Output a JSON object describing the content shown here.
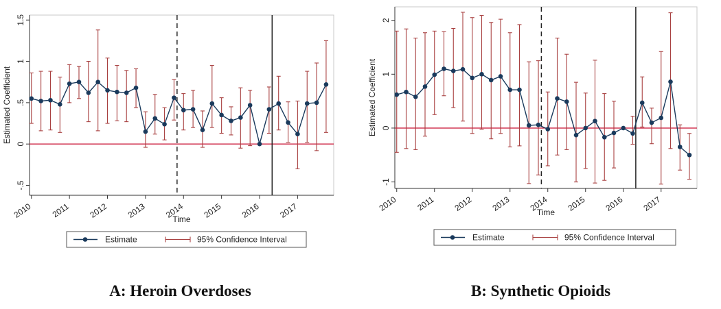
{
  "panels": [
    {
      "caption": "A: Heroin Overdoses",
      "chart_data": {
        "type": "line",
        "title": "A: Heroin Overdoses",
        "xlabel": "Time",
        "ylabel": "Estimated Coefficient",
        "x_tick_labels": [
          "2010",
          "2011",
          "2012",
          "2013",
          "2014",
          "2015",
          "2016",
          "2017"
        ],
        "y_ticks": [
          -0.5,
          0,
          0.5,
          1,
          1.5
        ],
        "y_tick_labels": [
          "-.5",
          "0",
          ".5",
          "1",
          "1.5"
        ],
        "ylim": [
          -0.62,
          1.56
        ],
        "xlim": [
          2009.95,
          2017.95
        ],
        "reference_line_y": 0,
        "vertical_lines": [
          {
            "x": 2013.83,
            "style": "dashed"
          },
          {
            "x": 2016.33,
            "style": "solid"
          }
        ],
        "series": [
          {
            "name": "Estimate",
            "x": [
              2010.0,
              2010.25,
              2010.5,
              2010.75,
              2011.0,
              2011.25,
              2011.5,
              2011.75,
              2012.0,
              2012.25,
              2012.5,
              2012.75,
              2013.0,
              2013.25,
              2013.5,
              2013.75,
              2014.0,
              2014.25,
              2014.5,
              2014.75,
              2015.0,
              2015.25,
              2015.5,
              2015.75,
              2016.0,
              2016.25,
              2016.5,
              2016.75,
              2017.0,
              2017.25,
              2017.5,
              2017.75
            ],
            "values": [
              0.55,
              0.52,
              0.53,
              0.48,
              0.73,
              0.75,
              0.62,
              0.75,
              0.65,
              0.63,
              0.62,
              0.68,
              0.15,
              0.31,
              0.24,
              0.56,
              0.41,
              0.42,
              0.17,
              0.49,
              0.35,
              0.28,
              0.32,
              0.47,
              0.0,
              0.42,
              0.49,
              0.26,
              0.12,
              0.49,
              0.5,
              0.72
            ]
          },
          {
            "name": "95% Confidence Interval",
            "lower": [
              0.25,
              0.16,
              0.17,
              0.14,
              0.5,
              0.55,
              0.27,
              0.16,
              0.25,
              0.28,
              0.27,
              0.44,
              -0.04,
              0.12,
              0.05,
              0.29,
              0.17,
              0.2,
              -0.04,
              0.2,
              0.13,
              0.11,
              -0.05,
              -0.02,
              0.0,
              0.13,
              0.17,
              0.02,
              -0.3,
              0.02,
              -0.08,
              0.14
            ],
            "upper": [
              0.86,
              0.88,
              0.88,
              0.81,
              0.96,
              0.94,
              1.0,
              1.38,
              1.04,
              0.95,
              0.89,
              0.91,
              0.39,
              0.6,
              0.44,
              0.78,
              0.61,
              0.65,
              0.4,
              0.95,
              0.56,
              0.45,
              0.68,
              0.65,
              0.0,
              0.69,
              0.82,
              0.51,
              0.52,
              0.88,
              0.98,
              1.25
            ]
          }
        ],
        "legend": [
          "Estimate",
          "95% Confidence Interval"
        ],
        "colors": {
          "estimate": "#1a3a5c",
          "ci": "#a84040",
          "zero_line": "#cc1f3f",
          "vertical": "#222222"
        }
      }
    },
    {
      "caption": "B: Synthetic Opioids",
      "chart_data": {
        "type": "line",
        "title": "B: Synthetic Opioids",
        "xlabel": "Time",
        "ylabel": "Estimated Coefficient",
        "x_tick_labels": [
          "2010",
          "2011",
          "2012",
          "2013",
          "2014",
          "2015",
          "2016",
          "2017"
        ],
        "y_ticks": [
          -1,
          0,
          1,
          2
        ],
        "y_tick_labels": [
          "-1",
          "0",
          "1",
          "2"
        ],
        "ylim": [
          -1.12,
          2.25
        ],
        "xlim": [
          2009.95,
          2017.95
        ],
        "reference_line_y": 0,
        "vertical_lines": [
          {
            "x": 2013.83,
            "style": "dashed"
          },
          {
            "x": 2016.33,
            "style": "solid"
          }
        ],
        "series": [
          {
            "name": "Estimate",
            "x": [
              2010.0,
              2010.25,
              2010.5,
              2010.75,
              2011.0,
              2011.25,
              2011.5,
              2011.75,
              2012.0,
              2012.25,
              2012.5,
              2012.75,
              2013.0,
              2013.25,
              2013.5,
              2013.75,
              2014.0,
              2014.25,
              2014.5,
              2014.75,
              2015.0,
              2015.25,
              2015.5,
              2015.75,
              2016.0,
              2016.25,
              2016.5,
              2016.75,
              2017.0,
              2017.25,
              2017.5,
              2017.75
            ],
            "values": [
              0.62,
              0.67,
              0.58,
              0.77,
              0.99,
              1.1,
              1.06,
              1.09,
              0.93,
              1.0,
              0.89,
              0.96,
              0.71,
              0.71,
              0.05,
              0.06,
              -0.02,
              0.55,
              0.49,
              -0.13,
              0.0,
              0.13,
              -0.17,
              -0.09,
              0.0,
              -0.1,
              0.47,
              0.1,
              0.19,
              0.86,
              -0.35,
              -0.5
            ]
          },
          {
            "name": "95% Confidence Interval",
            "lower": [
              -0.45,
              -0.38,
              -0.4,
              -0.15,
              0.25,
              0.6,
              0.38,
              0.13,
              -0.1,
              -0.02,
              -0.2,
              -0.1,
              -0.35,
              -0.33,
              -1.03,
              -0.87,
              -0.7,
              -0.5,
              -0.4,
              -1.0,
              -0.75,
              -1.02,
              -0.97,
              -0.74,
              0.0,
              -0.3,
              0.02,
              -0.29,
              -1.04,
              -0.38,
              -0.78,
              -0.95
            ],
            "upper": [
              1.8,
              1.84,
              1.67,
              1.77,
              1.8,
              1.79,
              1.85,
              2.15,
              2.05,
              2.09,
              1.96,
              2.02,
              1.77,
              1.92,
              1.23,
              1.25,
              0.67,
              1.67,
              1.37,
              0.85,
              0.65,
              1.26,
              0.64,
              0.5,
              0.0,
              0.22,
              0.95,
              0.37,
              1.42,
              2.14,
              0.06,
              -0.1
            ]
          }
        ],
        "legend": [
          "Estimate",
          "95% Confidence Interval"
        ],
        "colors": {
          "estimate": "#1a3a5c",
          "ci": "#a84040",
          "zero_line": "#cc1f3f",
          "vertical": "#222222"
        }
      }
    }
  ]
}
